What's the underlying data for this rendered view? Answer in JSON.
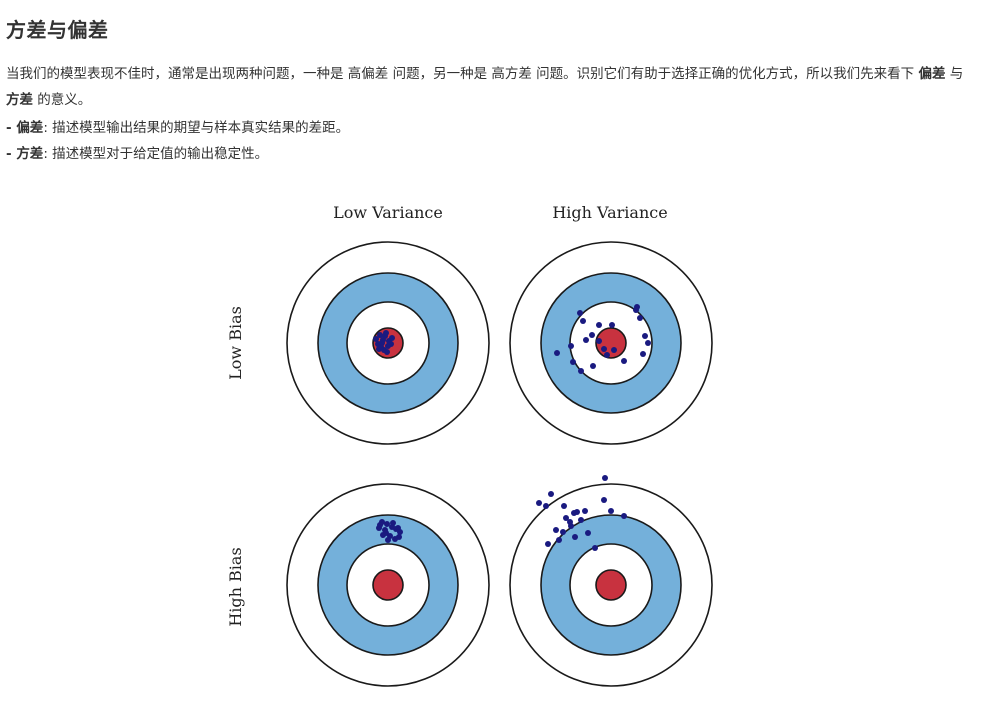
{
  "article": {
    "heading": "方差与偏差",
    "para_part1": "当我们的模型表现不佳时，通常是出现两种问题，一种是 高偏差 问题，另一种是 高方差 问题。识别它们有助于选择正确的优化方式，所以我们先来看下 ",
    "term_bias": "偏差",
    "para_part2": " 与 ",
    "term_variance": "方差",
    "para_part3": " 的意义。",
    "bias_prefix": "- ",
    "bias_term": "偏差",
    "bias_def": ": 描述模型输出结果的期望与样本真实结果的差距。",
    "variance_prefix": "- ",
    "variance_term": "方差",
    "variance_def": ": 描述模型对于给定值的输出稳定性。"
  },
  "figure": {
    "col_low_variance": "Low Variance",
    "col_high_variance": "High Variance",
    "row_low_bias": "Low Bias",
    "row_high_bias": "High Bias",
    "colors": {
      "ring_outer": "#ffffff",
      "ring_blue": "#74b0da",
      "bullseye": "#c8323f",
      "dot": "#1a1a80",
      "stroke": "#1a1a1a"
    }
  }
}
